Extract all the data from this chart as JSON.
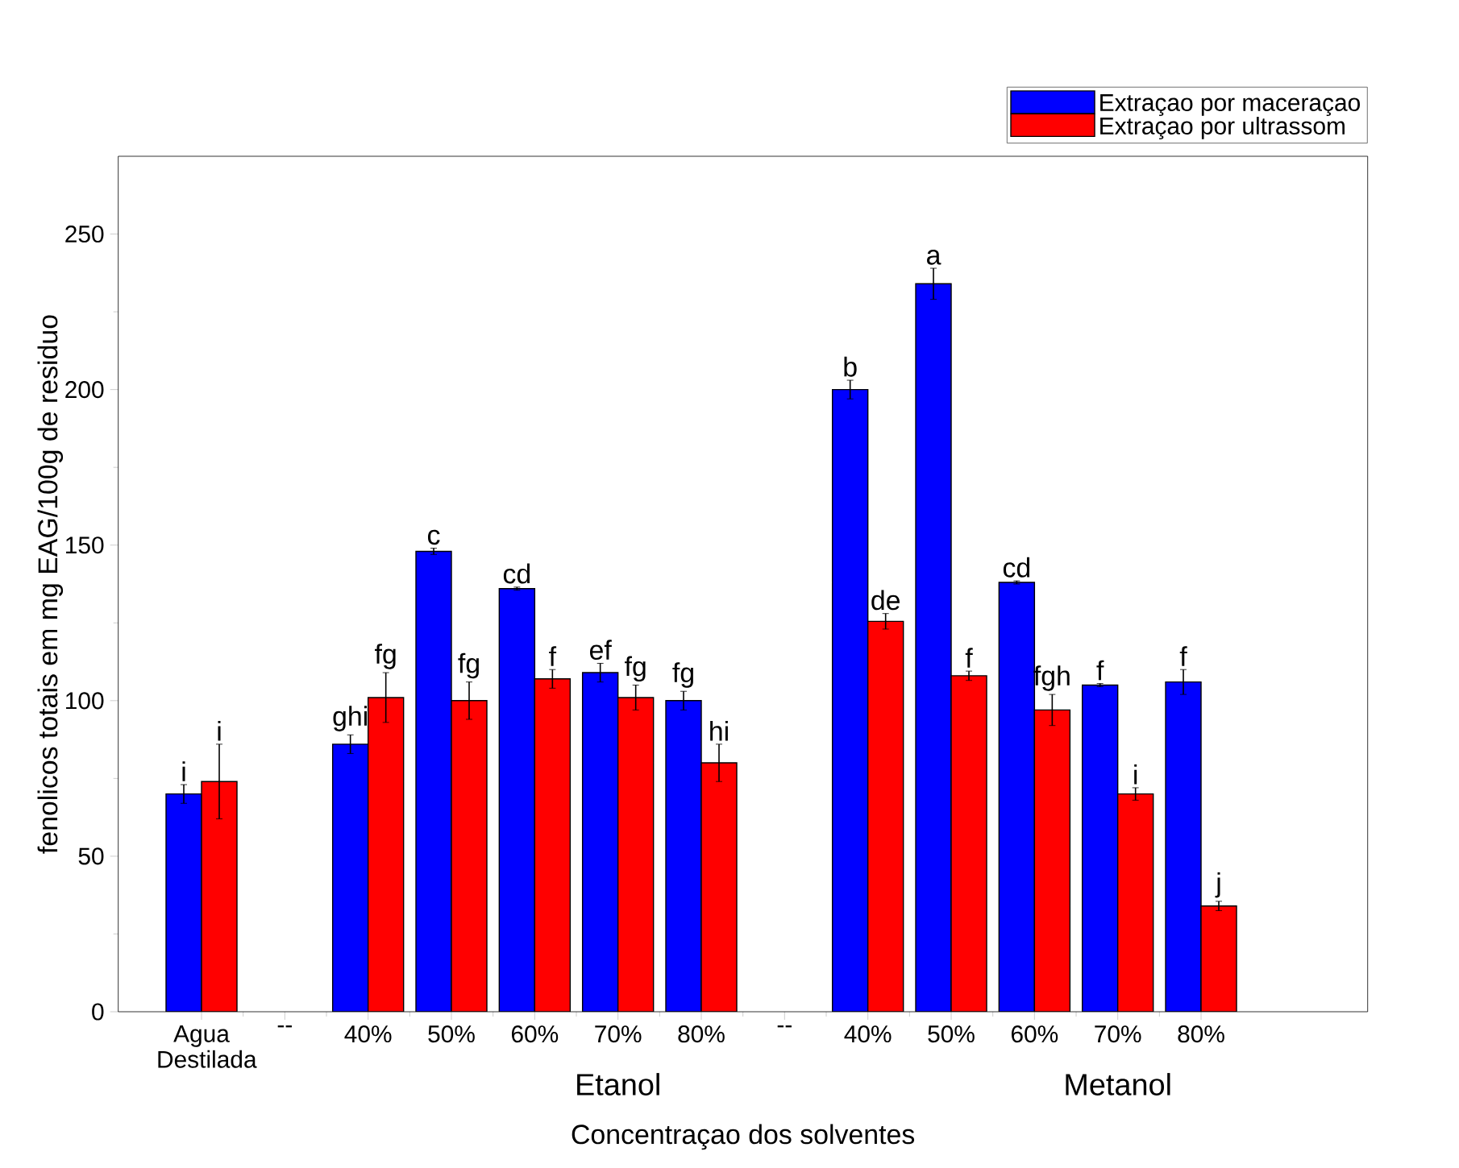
{
  "chart_data": {
    "type": "bar",
    "xlabel": "Concentraçao dos solventes",
    "ylabel": "fenolicos totais em mg EAG/100g de residuo",
    "categories": [
      "Agua Destilada",
      "--",
      "40%",
      "50%",
      "60%",
      "70%",
      "80%",
      "--",
      "40%",
      "50%",
      "60%",
      "70%",
      "80%"
    ],
    "series": [
      {
        "name": "Extraçao por maceraçao",
        "color": "#0000ff",
        "values": [
          70,
          null,
          86,
          148,
          136,
          109,
          100,
          null,
          200,
          234,
          138,
          105,
          106
        ],
        "errors": [
          3,
          null,
          3,
          1,
          0.5,
          3,
          3,
          null,
          3,
          5,
          0.5,
          0.5,
          4
        ],
        "value_labels": [
          "i",
          null,
          "ghi",
          "c",
          "cd",
          "ef",
          "fg",
          null,
          "b",
          "a",
          "cd",
          "f",
          "f"
        ]
      },
      {
        "name": "Extraçao por ultrassom",
        "color": "#ff0000",
        "values": [
          74,
          null,
          101,
          100,
          107,
          101,
          80,
          null,
          125.5,
          108,
          97,
          70,
          34
        ],
        "errors": [
          12,
          null,
          8,
          6,
          3,
          4,
          6,
          null,
          2.5,
          1.5,
          5,
          2,
          1.5
        ],
        "value_labels": [
          "i",
          null,
          "fg",
          "fg",
          "f",
          "fg",
          "hi",
          null,
          "de",
          "f",
          "fgh",
          "i",
          "j"
        ]
      }
    ],
    "annotations": [
      "Etanol",
      "Metanol"
    ],
    "ylim": [
      0,
      275
    ],
    "yticks": [
      0,
      50,
      100,
      150,
      200,
      250
    ],
    "legend": "top right"
  }
}
